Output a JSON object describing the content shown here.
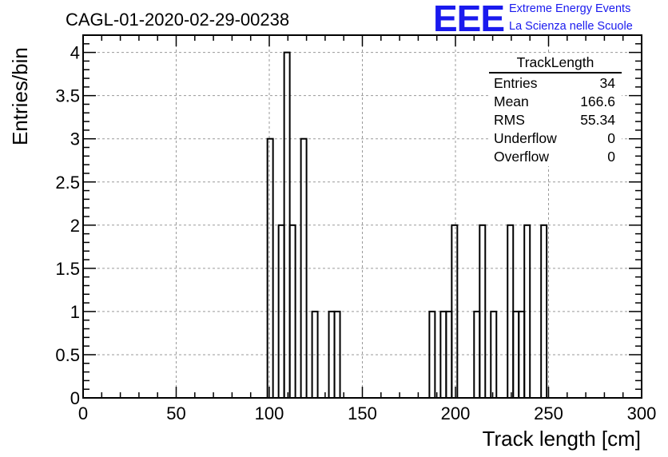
{
  "header": {
    "title": "CAGL-01-2020-02-29-00238",
    "logo_text": "EEE",
    "logo_line1": "Extreme Energy Events",
    "logo_line2": "La Scienza nelle Scuole"
  },
  "stats_box": {
    "title": "TrackLength",
    "rows": [
      {
        "label": "Entries",
        "value": "34"
      },
      {
        "label": "Mean",
        "value": "166.6"
      },
      {
        "label": "RMS",
        "value": "55.34"
      },
      {
        "label": "Underflow",
        "value": "0"
      },
      {
        "label": "Overflow",
        "value": "0"
      }
    ]
  },
  "chart_data": {
    "type": "bar",
    "title": "CAGL-01-2020-02-29-00238",
    "xlabel": "Track length [cm]",
    "ylabel": "Entries/bin",
    "xlim": [
      0,
      300
    ],
    "ylim": [
      0,
      4.2
    ],
    "grid": true,
    "bin_width": 3,
    "bins": [
      {
        "x": 99,
        "value": 3
      },
      {
        "x": 102,
        "value": 0
      },
      {
        "x": 105,
        "value": 2
      },
      {
        "x": 108,
        "value": 4
      },
      {
        "x": 111,
        "value": 2
      },
      {
        "x": 114,
        "value": 0
      },
      {
        "x": 117,
        "value": 3
      },
      {
        "x": 120,
        "value": 0
      },
      {
        "x": 123,
        "value": 1
      },
      {
        "x": 132,
        "value": 1
      },
      {
        "x": 135,
        "value": 1
      },
      {
        "x": 186,
        "value": 1
      },
      {
        "x": 192,
        "value": 1
      },
      {
        "x": 195,
        "value": 1
      },
      {
        "x": 198,
        "value": 2
      },
      {
        "x": 210,
        "value": 1
      },
      {
        "x": 213,
        "value": 2
      },
      {
        "x": 219,
        "value": 1
      },
      {
        "x": 228,
        "value": 2
      },
      {
        "x": 231,
        "value": 1
      },
      {
        "x": 234,
        "value": 1
      },
      {
        "x": 237,
        "value": 2
      },
      {
        "x": 246,
        "value": 2
      }
    ],
    "x_ticks": [
      0,
      50,
      100,
      150,
      200,
      250,
      300
    ],
    "y_ticks": [
      "0",
      "0.5",
      "1",
      "1.5",
      "2",
      "2.5",
      "3",
      "3.5",
      "4"
    ],
    "colors": {
      "line": "#000000",
      "grid": "#9a9a9a"
    }
  }
}
